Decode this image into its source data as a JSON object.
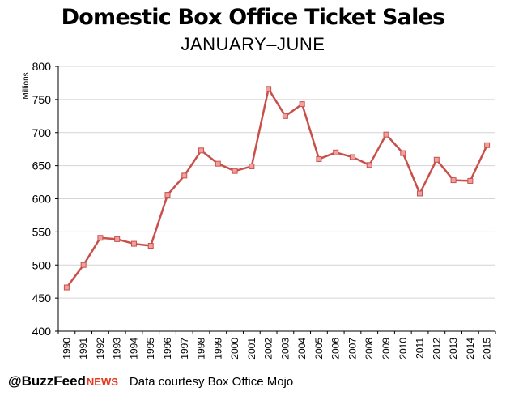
{
  "footer": {
    "brand_handle": "@BuzzFeed",
    "brand_suffix": "NEWS",
    "credit": "Data courtesy Box Office Mojo"
  },
  "colors": {
    "line": "#c9504a",
    "marker": "#f0a0a0",
    "grid": "#d4d4d4",
    "brand_accent": "#e43a1f"
  },
  "chart_data": {
    "type": "line",
    "title": "Domestic Box Office Ticket Sales",
    "subtitle": "JANUARY–JUNE",
    "xlabel": "",
    "ylabel": "Millions",
    "ylim": [
      400,
      800
    ],
    "yticks": [
      400,
      450,
      500,
      550,
      600,
      650,
      700,
      750,
      800
    ],
    "grid": true,
    "categories": [
      "1990",
      "1991",
      "1992",
      "1993",
      "1994",
      "1995",
      "1996",
      "1997",
      "1998",
      "1999",
      "2000",
      "2001",
      "2002",
      "2003",
      "2004",
      "2005",
      "2006",
      "2007",
      "2008",
      "2009",
      "2010",
      "2011",
      "2012",
      "2013",
      "2014",
      "2015"
    ],
    "series": [
      {
        "name": "Ticket Sales",
        "values": [
          466,
          500,
          541,
          539,
          532,
          529,
          606,
          635,
          673,
          653,
          642,
          649,
          766,
          725,
          743,
          660,
          670,
          663,
          651,
          697,
          669,
          608,
          659,
          628,
          627,
          681
        ]
      }
    ]
  }
}
